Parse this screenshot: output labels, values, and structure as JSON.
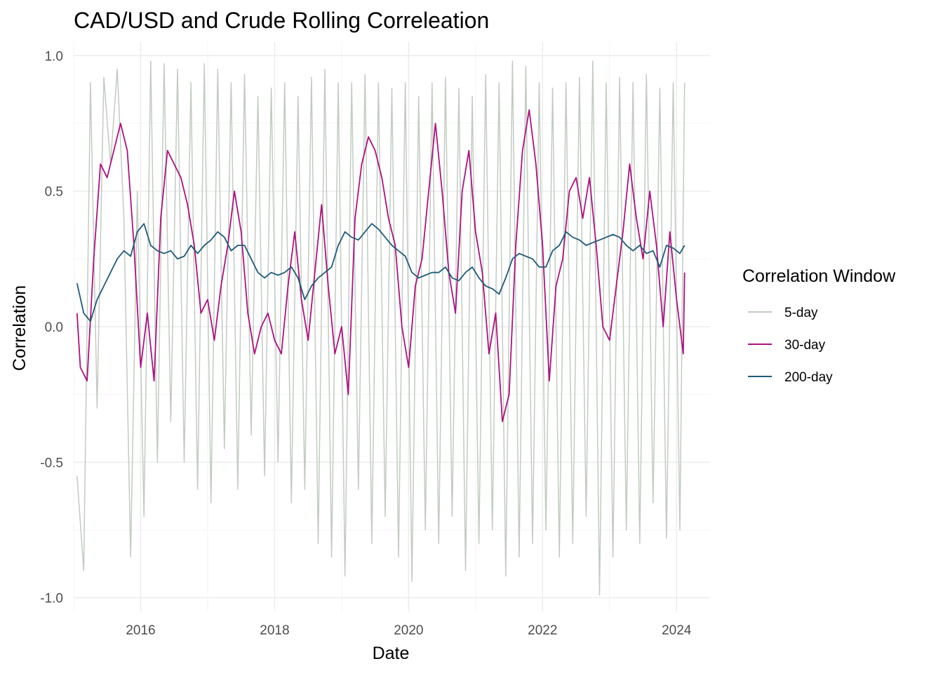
{
  "chart_data": {
    "type": "line",
    "title": "CAD/USD and Crude Rolling Correleation",
    "xlabel": "Date",
    "ylabel": "Correlation",
    "x_ticks": [
      "2016",
      "2018",
      "2020",
      "2022",
      "2024"
    ],
    "x_tick_values": [
      2016,
      2018,
      2020,
      2022,
      2024
    ],
    "y_ticks": [
      "-1.0",
      "-0.5",
      "0.0",
      "0.5",
      "1.0"
    ],
    "y_tick_values": [
      -1.0,
      -0.5,
      0.0,
      0.5,
      1.0
    ],
    "xlim": [
      2015.0,
      2024.5
    ],
    "ylim": [
      -1.05,
      1.05
    ],
    "grid": true,
    "legend": {
      "title": "Correlation Window",
      "placement": "right"
    },
    "series": [
      {
        "name": "5-day",
        "color": "#c2cbc1",
        "x": [
          2015.05,
          2015.15,
          2015.25,
          2015.35,
          2015.45,
          2015.55,
          2015.65,
          2015.75,
          2015.85,
          2015.95,
          2016.05,
          2016.15,
          2016.25,
          2016.35,
          2016.45,
          2016.55,
          2016.65,
          2016.75,
          2016.85,
          2016.95,
          2017.05,
          2017.15,
          2017.25,
          2017.35,
          2017.45,
          2017.55,
          2017.65,
          2017.75,
          2017.85,
          2017.95,
          2018.05,
          2018.15,
          2018.25,
          2018.35,
          2018.45,
          2018.55,
          2018.65,
          2018.75,
          2018.85,
          2018.95,
          2019.05,
          2019.15,
          2019.25,
          2019.35,
          2019.45,
          2019.55,
          2019.65,
          2019.75,
          2019.85,
          2019.95,
          2020.05,
          2020.15,
          2020.25,
          2020.35,
          2020.45,
          2020.55,
          2020.65,
          2020.75,
          2020.85,
          2020.95,
          2021.05,
          2021.15,
          2021.25,
          2021.35,
          2021.45,
          2021.55,
          2021.65,
          2021.75,
          2021.85,
          2021.95,
          2022.05,
          2022.15,
          2022.25,
          2022.35,
          2022.45,
          2022.55,
          2022.65,
          2022.75,
          2022.85,
          2022.95,
          2023.05,
          2023.15,
          2023.25,
          2023.35,
          2023.45,
          2023.55,
          2023.65,
          2023.75,
          2023.85,
          2023.95,
          2024.05,
          2024.12
        ],
        "y": [
          -0.55,
          -0.9,
          0.9,
          -0.3,
          0.92,
          0.6,
          0.95,
          0.4,
          -0.85,
          0.5,
          -0.7,
          0.98,
          -0.5,
          0.97,
          -0.35,
          0.95,
          -0.5,
          0.9,
          -0.6,
          0.97,
          -0.65,
          0.95,
          -0.45,
          0.9,
          -0.6,
          0.93,
          -0.4,
          0.85,
          -0.55,
          0.88,
          -0.5,
          0.9,
          -0.65,
          0.85,
          -0.6,
          0.92,
          -0.8,
          0.95,
          -0.85,
          0.9,
          -0.92,
          0.9,
          -0.6,
          0.93,
          -0.8,
          0.9,
          -0.7,
          0.88,
          -0.85,
          0.9,
          -0.94,
          0.85,
          -0.75,
          0.9,
          -0.8,
          0.92,
          -0.7,
          0.88,
          -0.9,
          0.85,
          -0.8,
          0.93,
          -0.75,
          0.9,
          -0.92,
          0.98,
          -0.85,
          0.96,
          -0.8,
          0.9,
          -0.75,
          0.88,
          -0.85,
          0.9,
          -0.8,
          0.92,
          -0.7,
          0.98,
          -0.99,
          0.9,
          -0.85,
          0.92,
          -0.75,
          0.9,
          -0.8,
          0.93,
          -0.65,
          0.88,
          -0.78,
          0.9,
          -0.75,
          0.9
        ]
      },
      {
        "name": "30-day",
        "color": "#ad1280",
        "x": [
          2015.05,
          2015.1,
          2015.2,
          2015.3,
          2015.4,
          2015.5,
          2015.6,
          2015.7,
          2015.8,
          2015.9,
          2016.0,
          2016.1,
          2016.2,
          2016.3,
          2016.4,
          2016.5,
          2016.6,
          2016.7,
          2016.8,
          2016.9,
          2017.0,
          2017.1,
          2017.2,
          2017.3,
          2017.4,
          2017.5,
          2017.6,
          2017.7,
          2017.8,
          2017.9,
          2018.0,
          2018.1,
          2018.2,
          2018.3,
          2018.4,
          2018.5,
          2018.6,
          2018.7,
          2018.8,
          2018.9,
          2019.0,
          2019.1,
          2019.2,
          2019.3,
          2019.4,
          2019.5,
          2019.6,
          2019.7,
          2019.8,
          2019.9,
          2020.0,
          2020.1,
          2020.2,
          2020.3,
          2020.4,
          2020.5,
          2020.6,
          2020.7,
          2020.8,
          2020.9,
          2021.0,
          2021.1,
          2021.2,
          2021.3,
          2021.4,
          2021.5,
          2021.6,
          2021.7,
          2021.8,
          2021.9,
          2022.0,
          2022.1,
          2022.2,
          2022.3,
          2022.4,
          2022.5,
          2022.6,
          2022.7,
          2022.8,
          2022.9,
          2023.0,
          2023.1,
          2023.2,
          2023.3,
          2023.4,
          2023.5,
          2023.6,
          2023.7,
          2023.8,
          2023.9,
          2024.0,
          2024.1,
          2024.12
        ],
        "y": [
          0.05,
          -0.15,
          -0.2,
          0.25,
          0.6,
          0.55,
          0.65,
          0.75,
          0.65,
          0.3,
          -0.15,
          0.05,
          -0.2,
          0.4,
          0.65,
          0.6,
          0.55,
          0.45,
          0.3,
          0.05,
          0.1,
          -0.05,
          0.15,
          0.3,
          0.5,
          0.35,
          0.05,
          -0.1,
          0.0,
          0.05,
          -0.05,
          -0.1,
          0.15,
          0.35,
          0.1,
          -0.05,
          0.2,
          0.45,
          0.15,
          -0.1,
          0.0,
          -0.25,
          0.4,
          0.6,
          0.7,
          0.65,
          0.55,
          0.4,
          0.3,
          0.0,
          -0.15,
          0.15,
          0.25,
          0.5,
          0.75,
          0.5,
          0.2,
          0.05,
          0.5,
          0.65,
          0.35,
          0.2,
          -0.1,
          0.05,
          -0.35,
          -0.25,
          0.3,
          0.65,
          0.8,
          0.6,
          0.3,
          -0.2,
          0.15,
          0.25,
          0.5,
          0.55,
          0.4,
          0.55,
          0.3,
          0.0,
          -0.05,
          0.15,
          0.35,
          0.6,
          0.4,
          0.25,
          0.5,
          0.3,
          0.0,
          0.35,
          0.1,
          -0.1,
          0.2
        ]
      },
      {
        "name": "200-day",
        "color": "#1e5b79",
        "x": [
          2015.05,
          2015.15,
          2015.25,
          2015.35,
          2015.45,
          2015.55,
          2015.65,
          2015.75,
          2015.85,
          2015.95,
          2016.05,
          2016.15,
          2016.25,
          2016.35,
          2016.45,
          2016.55,
          2016.65,
          2016.75,
          2016.85,
          2016.95,
          2017.05,
          2017.15,
          2017.25,
          2017.35,
          2017.45,
          2017.55,
          2017.65,
          2017.75,
          2017.85,
          2017.95,
          2018.05,
          2018.15,
          2018.25,
          2018.35,
          2018.45,
          2018.55,
          2018.65,
          2018.75,
          2018.85,
          2018.95,
          2019.05,
          2019.15,
          2019.25,
          2019.35,
          2019.45,
          2019.55,
          2019.65,
          2019.75,
          2019.85,
          2019.95,
          2020.05,
          2020.15,
          2020.25,
          2020.35,
          2020.45,
          2020.55,
          2020.65,
          2020.75,
          2020.85,
          2020.95,
          2021.05,
          2021.15,
          2021.25,
          2021.35,
          2021.45,
          2021.55,
          2021.65,
          2021.75,
          2021.85,
          2021.95,
          2022.05,
          2022.15,
          2022.25,
          2022.35,
          2022.45,
          2022.55,
          2022.65,
          2022.75,
          2022.85,
          2022.95,
          2023.05,
          2023.15,
          2023.25,
          2023.35,
          2023.45,
          2023.55,
          2023.65,
          2023.75,
          2023.85,
          2023.95,
          2024.05,
          2024.12
        ],
        "y": [
          0.16,
          0.05,
          0.02,
          0.1,
          0.15,
          0.2,
          0.25,
          0.28,
          0.26,
          0.35,
          0.38,
          0.3,
          0.28,
          0.27,
          0.28,
          0.25,
          0.26,
          0.3,
          0.27,
          0.3,
          0.32,
          0.35,
          0.33,
          0.28,
          0.3,
          0.3,
          0.25,
          0.2,
          0.18,
          0.2,
          0.19,
          0.2,
          0.22,
          0.18,
          0.1,
          0.15,
          0.18,
          0.2,
          0.22,
          0.3,
          0.35,
          0.33,
          0.32,
          0.35,
          0.38,
          0.36,
          0.33,
          0.3,
          0.28,
          0.26,
          0.2,
          0.18,
          0.19,
          0.2,
          0.2,
          0.22,
          0.18,
          0.17,
          0.2,
          0.22,
          0.18,
          0.15,
          0.14,
          0.12,
          0.18,
          0.25,
          0.27,
          0.26,
          0.25,
          0.22,
          0.22,
          0.28,
          0.3,
          0.35,
          0.33,
          0.32,
          0.3,
          0.31,
          0.32,
          0.33,
          0.34,
          0.33,
          0.3,
          0.28,
          0.3,
          0.27,
          0.28,
          0.22,
          0.3,
          0.29,
          0.27,
          0.3
        ]
      }
    ]
  }
}
